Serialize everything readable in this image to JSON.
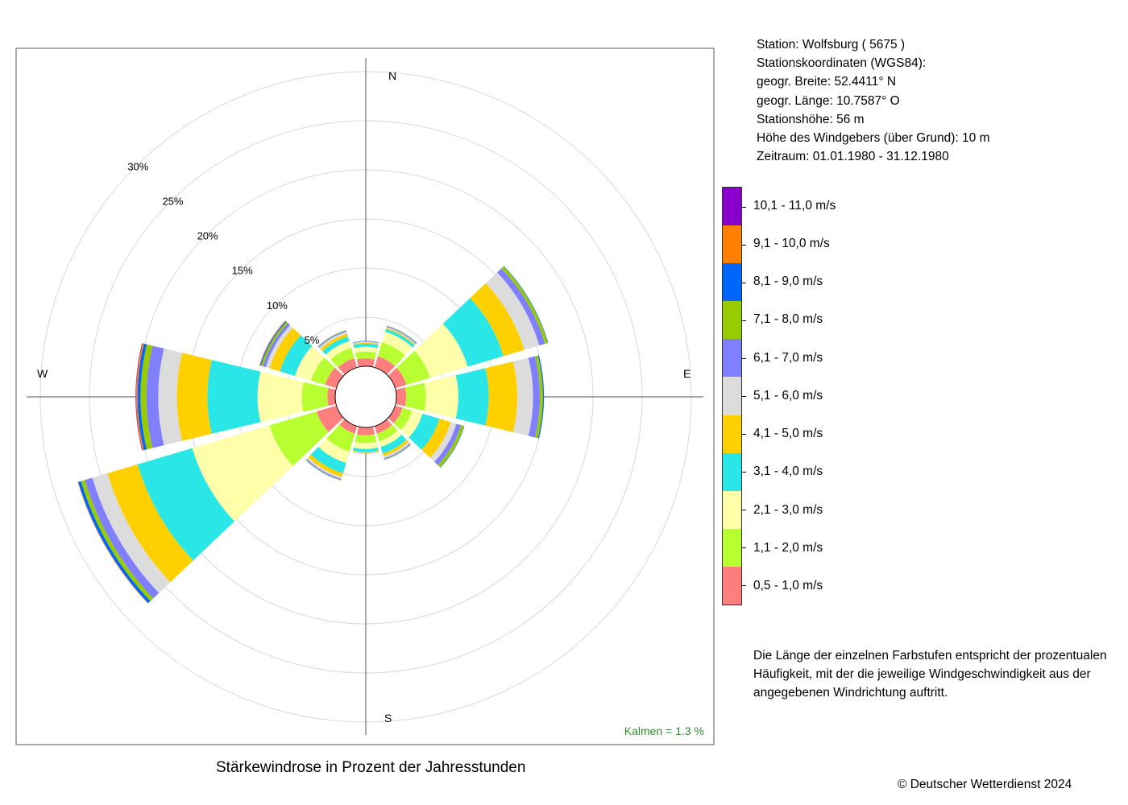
{
  "station_info": {
    "station": "Station:  Wolfsburg  ( 5675 )",
    "coords_label": "Stationskoordinaten (WGS84):",
    "lat": "geogr. Breite: 52.4411° N",
    "lon": "geogr. Länge: 10.7587° O",
    "height": "Stationshöhe: 56 m",
    "sensor_height": "Höhe des Windgebers (über Grund): 10 m",
    "period": "Zeitraum: 01.01.1980 - 31.12.1980"
  },
  "note": "Die Länge der einzelnen Farbstufen entspricht der prozentualen Häufigkeit, mit der die jeweilige Windgeschwindigkeit aus der angegebenen Windrichtung auftritt.",
  "copyright": "© Deutscher Wetterdienst  2024",
  "chart_data": {
    "type": "polar-stacked-bar",
    "title": "Stärkewindrose in Prozent der Jahresstunden",
    "calm_label": "Kalmen  =  1.3 %",
    "compass": {
      "N": "N",
      "E": "E",
      "S": "S",
      "W": "W"
    },
    "radial_ticks": [
      5,
      10,
      15,
      20,
      25,
      30
    ],
    "radial_tick_labels": [
      "5%",
      "10%",
      "15%",
      "20%",
      "25%",
      "30%"
    ],
    "radial_max": 30,
    "speed_classes": [
      {
        "label": "0,5 - 1,0 m/s",
        "color": "#FF7F7F"
      },
      {
        "label": "1,1 - 2,0 m/s",
        "color": "#B8FF32"
      },
      {
        "label": "2,1 - 3,0 m/s",
        "color": "#FFFFAA"
      },
      {
        "label": "3,1 - 4,0 m/s",
        "color": "#2AE6E6"
      },
      {
        "label": "4,1 - 5,0 m/s",
        "color": "#FFD000"
      },
      {
        "label": "5,1 - 6,0 m/s",
        "color": "#DCDCDC"
      },
      {
        "label": "6,1 - 7,0 m/s",
        "color": "#8080FF"
      },
      {
        "label": "7,1 - 8,0 m/s",
        "color": "#99CC00"
      },
      {
        "label": "8,1 - 9,0 m/s",
        "color": "#0066FF"
      },
      {
        "label": "9,1 - 10,0 m/s",
        "color": "#FF8000"
      },
      {
        "label": "10,1 - 11,0 m/s",
        "color": "#8800CC"
      }
    ],
    "directions_deg": [
      0,
      30,
      60,
      90,
      120,
      150,
      180,
      210,
      240,
      270,
      300,
      330
    ],
    "sectors": [
      {
        "dir": 0,
        "values": [
          0.8,
          0.7,
          0.5,
          0.3,
          0.1,
          0.1,
          0.05,
          0.02,
          0.02,
          0,
          0
        ]
      },
      {
        "dir": 30,
        "values": [
          1.2,
          1.5,
          1.1,
          0.3,
          0.1,
          0.1,
          0.08,
          0.05,
          0.02,
          0,
          0
        ]
      },
      {
        "dir": 60,
        "values": [
          1.2,
          2.5,
          4.0,
          3.8,
          2.2,
          1.6,
          0.6,
          0.3,
          0.05,
          0,
          0
        ]
      },
      {
        "dir": 90,
        "values": [
          1.0,
          2.0,
          3.3,
          3.1,
          2.9,
          1.6,
          0.7,
          0.3,
          0.1,
          0,
          0
        ]
      },
      {
        "dir": 120,
        "values": [
          0.8,
          1.0,
          1.1,
          1.8,
          1.2,
          0.6,
          0.5,
          0.3,
          0.05,
          0,
          0
        ]
      },
      {
        "dir": 150,
        "values": [
          0.8,
          0.8,
          0.6,
          0.7,
          0.3,
          0.2,
          0.1,
          0.05,
          0.02,
          0,
          0
        ]
      },
      {
        "dir": 180,
        "values": [
          0.8,
          0.8,
          0.6,
          0.3,
          0.1,
          0.05,
          0.02,
          0,
          0,
          0,
          0
        ]
      },
      {
        "dir": 210,
        "values": [
          0.8,
          1.9,
          1.2,
          1.1,
          0.4,
          0.2,
          0.1,
          0.05,
          0.02,
          0,
          0
        ]
      },
      {
        "dir": 240,
        "values": [
          2.1,
          5.0,
          8.2,
          5.8,
          3.2,
          1.6,
          0.8,
          0.4,
          0.3,
          0.05,
          0
        ]
      },
      {
        "dir": 270,
        "values": [
          0.8,
          2.6,
          4.5,
          5.1,
          3.1,
          1.9,
          1.2,
          0.6,
          0.3,
          0.15,
          0.05
        ]
      },
      {
        "dir": 300,
        "values": [
          1.2,
          1.5,
          1.7,
          1.6,
          1.1,
          0.4,
          0.3,
          0.2,
          0.1,
          0.05,
          0.02
        ]
      },
      {
        "dir": 330,
        "values": [
          1.0,
          1.1,
          0.7,
          0.5,
          0.3,
          0.2,
          0.1,
          0.05,
          0.02,
          0,
          0
        ]
      }
    ]
  }
}
